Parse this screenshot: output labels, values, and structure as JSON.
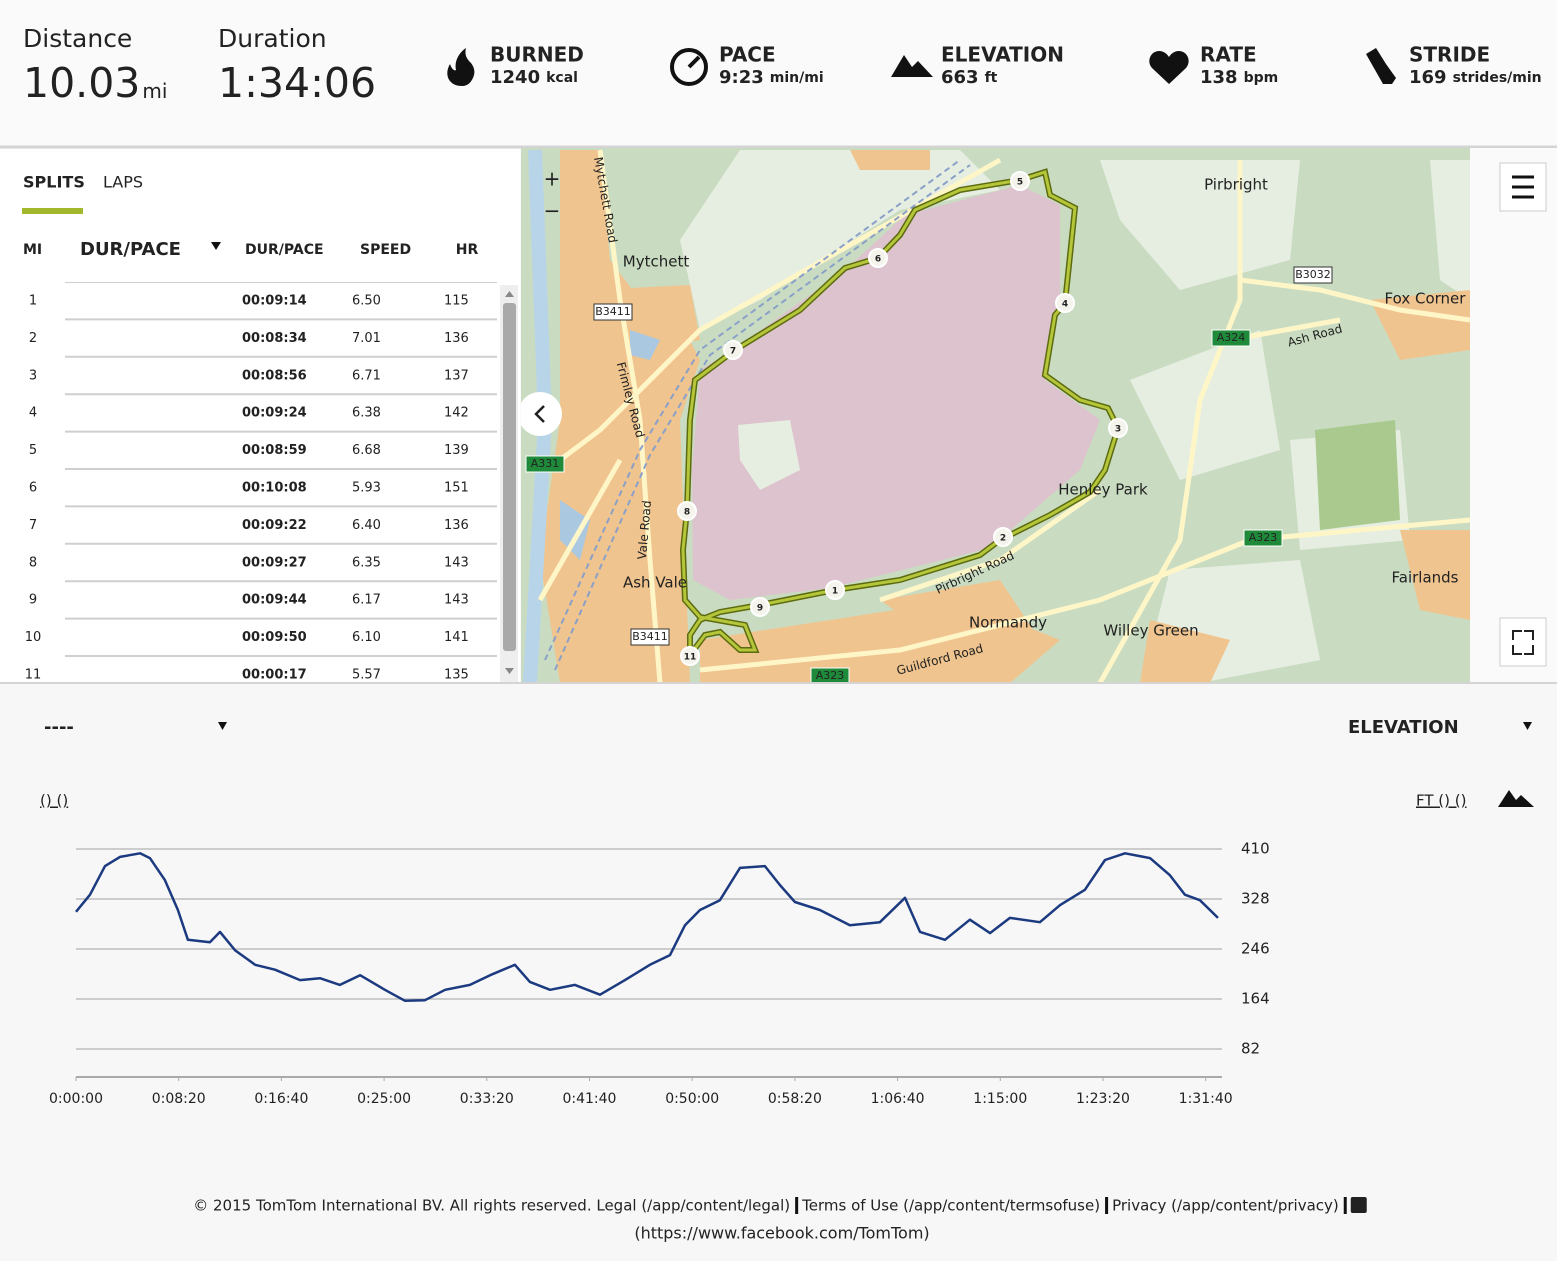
{
  "header": {
    "distance": {
      "label": "Distance",
      "value": "10.03",
      "unit": "mi"
    },
    "duration": {
      "label": "Duration",
      "value": "1:34:06"
    },
    "stats": [
      {
        "label": "BURNED",
        "value": "1240",
        "unit": "kcal"
      },
      {
        "label": "PACE",
        "value": "9:23",
        "unit": "min/mi"
      },
      {
        "label": "ELEVATION",
        "value": "663",
        "unit": "ft"
      },
      {
        "label": "RATE",
        "value": "138",
        "unit": "bpm"
      },
      {
        "label": "STRIDE",
        "value": "169",
        "unit": "strides/min"
      }
    ]
  },
  "splits": {
    "tabs": [
      "SPLITS",
      "LAPS"
    ],
    "columns": [
      "MI",
      "DUR/PACE",
      "DUR/PACE",
      "SPEED",
      "HR"
    ],
    "rows": [
      [
        "1",
        "00:09:14",
        "6.50",
        "115"
      ],
      [
        "2",
        "00:08:34",
        "7.01",
        "136"
      ],
      [
        "3",
        "00:08:56",
        "6.71",
        "137"
      ],
      [
        "4",
        "00:09:24",
        "6.38",
        "142"
      ],
      [
        "5",
        "00:08:59",
        "6.68",
        "139"
      ],
      [
        "6",
        "00:10:08",
        "5.93",
        "151"
      ],
      [
        "7",
        "00:09:22",
        "6.40",
        "136"
      ],
      [
        "8",
        "00:09:27",
        "6.35",
        "143"
      ],
      [
        "9",
        "00:09:44",
        "6.17",
        "143"
      ],
      [
        "10",
        "00:09:50",
        "6.10",
        "141"
      ],
      [
        "11",
        "00:00:17",
        "5.57",
        "135"
      ]
    ]
  },
  "map": {
    "controls": [
      "+",
      "−"
    ],
    "labels": [
      "Mytchett Road",
      "Mytchett",
      "B3411",
      "Frimley Road",
      "A331",
      "Vale Road",
      "Ash Vale",
      "B3411",
      "A323",
      "Pirbright",
      "B3032",
      "Fox Corner",
      "A324",
      "Ash Road",
      "Henley Park",
      "Pirbright Road",
      "A323",
      "Fairlands",
      "Normandy",
      "Willey Green",
      "Guildford Road"
    ],
    "markers": [
      "1",
      "2",
      "3",
      "4",
      "5",
      "6",
      "7",
      "8",
      "9",
      "11"
    ]
  },
  "chart_controls": {
    "left_select": "----",
    "right_select": "ELEVATION",
    "left_units": "() ()",
    "right_units": "FT () ()"
  },
  "chart_data": {
    "type": "line",
    "color": "#1c3a80",
    "x": [
      0,
      68,
      141,
      214,
      312,
      360,
      433,
      496,
      545,
      652,
      701,
      774,
      872,
      969,
      1091,
      1188,
      1285,
      1383,
      1504,
      1602,
      1699,
      1797,
      1918,
      2016,
      2137,
      2210,
      2308,
      2429,
      2551,
      2673,
      2794,
      2892,
      2965,
      3038,
      3135,
      3233,
      3354,
      3427,
      3500,
      3622,
      3768,
      3914,
      4036,
      4109,
      4231,
      4352,
      4450,
      4547,
      4693,
      4791,
      4912,
      5010,
      5107,
      5229,
      5326,
      5399,
      5472,
      5560
    ],
    "values": [
      307,
      335,
      382,
      397,
      403,
      395,
      359,
      310,
      261,
      257,
      274,
      244,
      220,
      212,
      195,
      198,
      187,
      203,
      179,
      161,
      162,
      179,
      187,
      203,
      220,
      192,
      179,
      187,
      171,
      195,
      220,
      236,
      285,
      310,
      326,
      379,
      382,
      351,
      323,
      310,
      285,
      290,
      330,
      274,
      261,
      294,
      272,
      297,
      290,
      318,
      343,
      392,
      403,
      395,
      367,
      335,
      326,
      297
    ],
    "xlim": [
      0,
      5560
    ],
    "ylim": [
      36,
      410
    ],
    "xticks": [
      {
        "value": 0,
        "label": "0:00:00"
      },
      {
        "value": 500,
        "label": "0:08:20"
      },
      {
        "value": 1000,
        "label": "0:16:40"
      },
      {
        "value": 1500,
        "label": "0:25:00"
      },
      {
        "value": 2000,
        "label": "0:33:20"
      },
      {
        "value": 2500,
        "label": "0:41:40"
      },
      {
        "value": 3000,
        "label": "0:50:00"
      },
      {
        "value": 3500,
        "label": "0:58:20"
      },
      {
        "value": 4000,
        "label": "1:06:40"
      },
      {
        "value": 4500,
        "label": "1:15:00"
      },
      {
        "value": 5000,
        "label": "1:23:20"
      },
      {
        "value": 5500,
        "label": "1:31:40"
      }
    ],
    "yticks": [
      82,
      164,
      246,
      328,
      410
    ],
    "grid": true
  },
  "footer": {
    "items": [
      "© 2015 TomTom International BV. All rights reserved. Legal (/app/content/legal)",
      "Terms of Use (/app/content/termsofuse)",
      "Privacy (/app/content/privacy)"
    ],
    "line2": "(https://www.facebook.com/TomTom)"
  }
}
